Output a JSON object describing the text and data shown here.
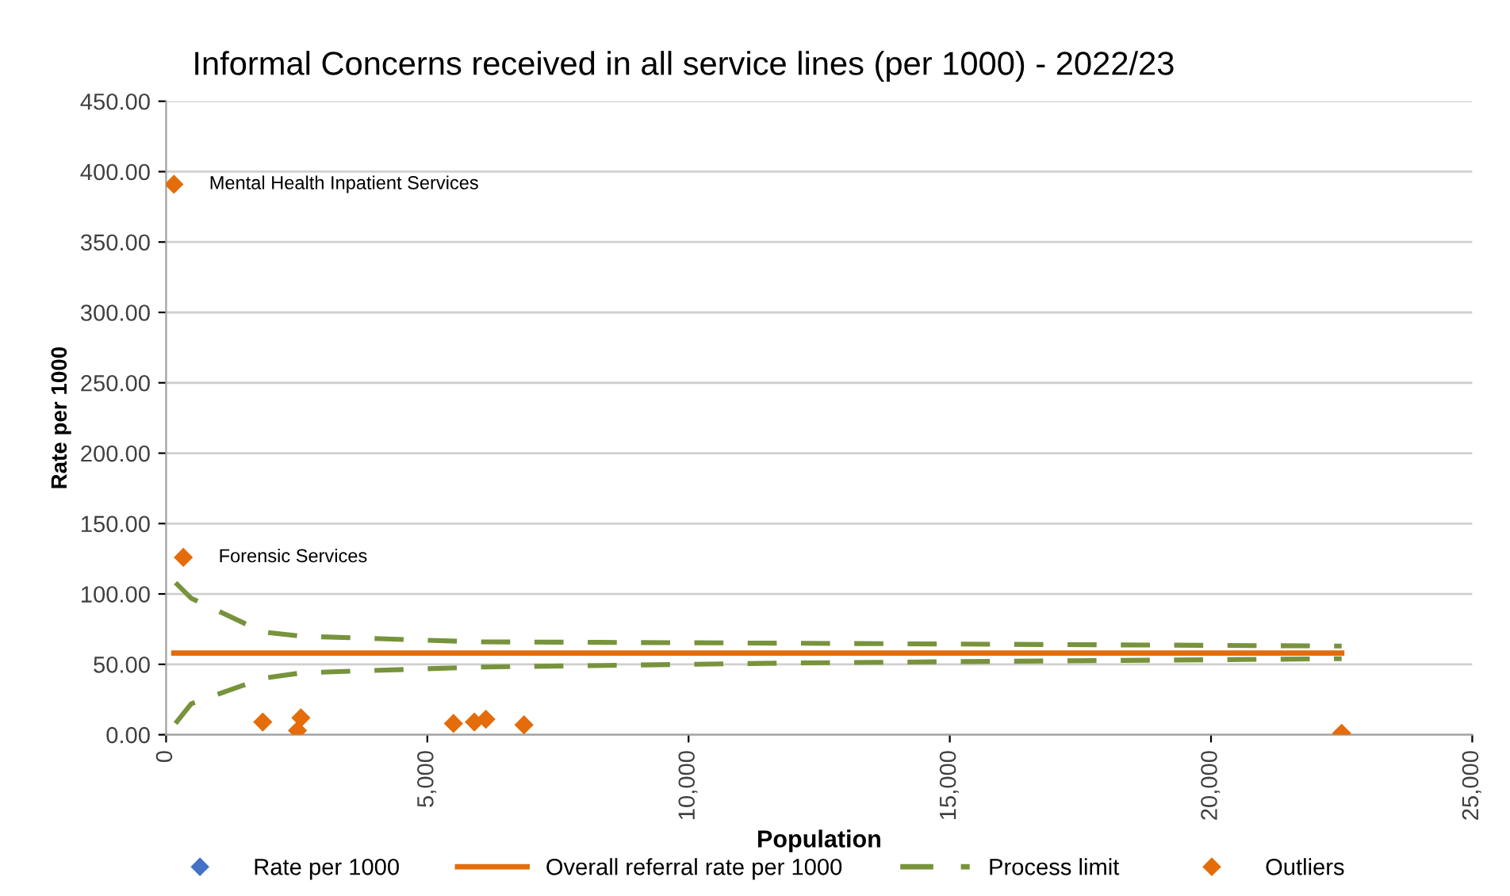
{
  "chart_data": {
    "type": "scatter",
    "title": "Informal Concerns received in all service lines (per 1000) - 2022/23",
    "xlabel": "Population",
    "ylabel": "Rate per 1000",
    "xlim": [
      0,
      25000
    ],
    "xticks": [
      {
        "value": 0,
        "label": "0"
      },
      {
        "value": 5000,
        "label": "5,000"
      },
      {
        "value": 10000,
        "label": "10,000"
      },
      {
        "value": 15000,
        "label": "15,000"
      },
      {
        "value": 20000,
        "label": "20,000"
      },
      {
        "value": 25000,
        "label": "25,000"
      }
    ],
    "ylim": [
      0,
      450
    ],
    "yticks": [
      {
        "value": 0,
        "label": "0.00"
      },
      {
        "value": 50,
        "label": "50.00"
      },
      {
        "value": 100,
        "label": "100.00"
      },
      {
        "value": 150,
        "label": "150.00"
      },
      {
        "value": 200,
        "label": "200.00"
      },
      {
        "value": 250,
        "label": "250.00"
      },
      {
        "value": 300,
        "label": "300.00"
      },
      {
        "value": 350,
        "label": "350.00"
      },
      {
        "value": 400,
        "label": "400.00"
      },
      {
        "value": 450,
        "label": "450.00"
      }
    ],
    "grid": "y",
    "legend": "bottom",
    "marker": "diamond",
    "series": [
      {
        "name": "Rate per 1000",
        "color": "#4472c4"
      },
      {
        "name": "Overall referral rate per 1000",
        "type": "line",
        "color": "#e46c0a",
        "line_style": "solid",
        "marker": "none",
        "x": [
          150,
          22500
        ],
        "values": [
          58,
          58
        ]
      },
      {
        "name": "Process limit",
        "type": "line",
        "color": "#77933c",
        "line_style": "dashed",
        "marker": "none",
        "x": [
          180,
          480,
          1850,
          2600,
          5940,
          12000,
          22500
        ],
        "values": [
          108,
          97,
          73,
          70,
          66,
          65,
          63
        ]
      },
      {
        "type": "line",
        "color": "#77933c",
        "line_style": "dashed",
        "marker": "none",
        "x": [
          180,
          480,
          1850,
          2600,
          5940,
          12000,
          22500
        ],
        "values": [
          8,
          22,
          40,
          44,
          48,
          51,
          54
        ]
      },
      {
        "name": "Outliers",
        "color": "#e46c0a",
        "x": [
          150,
          330,
          1850,
          2515,
          2580,
          5500,
          5900,
          6120,
          6850,
          22500
        ],
        "values": [
          391,
          126,
          9,
          3,
          12,
          8,
          9,
          11,
          7,
          1
        ]
      }
    ],
    "annotations": [
      {
        "text": "Mental Health Inpatient Services",
        "x": 150,
        "y": 391
      },
      {
        "text": "Forensic Services",
        "x": 330,
        "y": 126
      }
    ]
  }
}
